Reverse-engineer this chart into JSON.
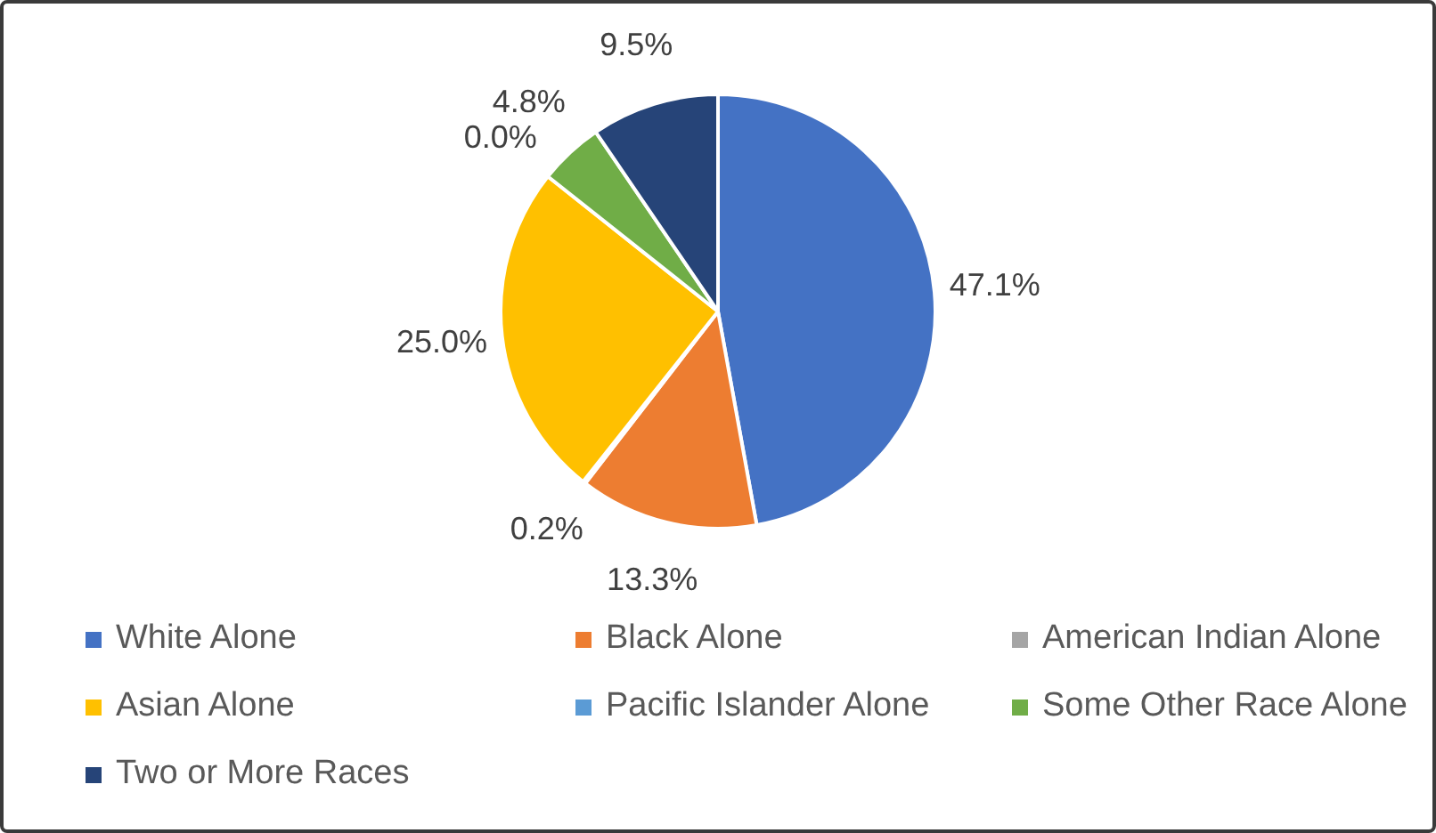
{
  "chart_data": {
    "type": "pie",
    "categories": [
      "White Alone",
      "Black Alone",
      "American Indian Alone",
      "Asian Alone",
      "Pacific Islander Alone",
      "Some Other Race Alone",
      "Two or More Races"
    ],
    "values": [
      47.1,
      13.3,
      0.2,
      25.0,
      0.0,
      4.8,
      9.5
    ],
    "colors": [
      "#4472c4",
      "#ed7d31",
      "#a5a5a5",
      "#ffc000",
      "#5b9bd5",
      "#70ad47",
      "#264478"
    ],
    "value_labels": [
      "47.1%",
      "13.3%",
      "0.2%",
      "25.0%",
      "0.0%",
      "4.8%",
      "9.5%"
    ],
    "legend": "bottom"
  }
}
